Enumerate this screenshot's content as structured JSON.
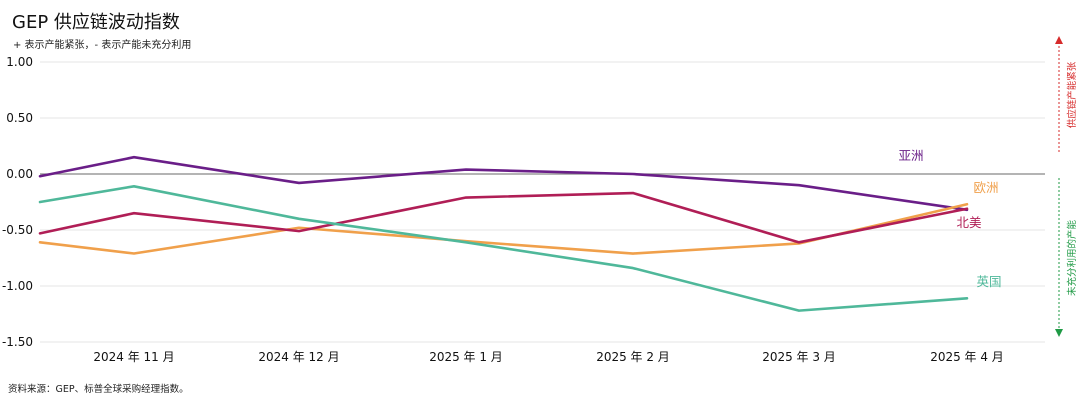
{
  "title": "GEP 供应链波动指数",
  "subtitle": "+ 表示产能紧张，- 表示产能未充分利用",
  "source": "资料来源：GEP、标普全球采购经理指数。",
  "side_labels": {
    "up": "供应链产能紧张",
    "down": "未充分利用的产能"
  },
  "colors": {
    "asia": "#6a1e88",
    "europe": "#f0a04b",
    "north_america": "#b01e56",
    "uk": "#4fb89a",
    "up_arrow": "#d62b2b",
    "down_arrow": "#1f9a45",
    "zero_line": "#888888",
    "grid": "#e6e6e6"
  },
  "chart_data": {
    "type": "line",
    "title": "GEP 供应链波动指数",
    "subtitle": "+ 表示产能紧张，- 表示产能未充分利用",
    "categories": [
      "2024 年 11 月",
      "2024 年 12 月",
      "2025 年 1 月",
      "2025 年 2 月",
      "2025 年 3 月",
      "2025 年 4 月"
    ],
    "ylim": [
      -1.5,
      1.0
    ],
    "yticks": [
      "1.00",
      "0.50",
      "0.00",
      "-0.50",
      "-1.00",
      "-1.50"
    ],
    "grid": true,
    "series": [
      {
        "name": "亚洲",
        "color": "#6a1e88",
        "start": -0.02,
        "values": [
          0.15,
          -0.08,
          0.04,
          0.0,
          -0.1,
          -0.32
        ]
      },
      {
        "name": "欧洲",
        "color": "#f0a04b",
        "start": -0.61,
        "values": [
          -0.71,
          -0.48,
          -0.6,
          -0.71,
          -0.62,
          -0.27
        ]
      },
      {
        "name": "北美",
        "color": "#b01e56",
        "start": -0.53,
        "values": [
          -0.35,
          -0.51,
          -0.21,
          -0.17,
          -0.61,
          -0.31
        ]
      },
      {
        "name": "英国",
        "color": "#4fb89a",
        "start": -0.25,
        "values": [
          -0.11,
          -0.4,
          -0.61,
          -0.84,
          -1.22,
          -1.11
        ]
      }
    ]
  }
}
